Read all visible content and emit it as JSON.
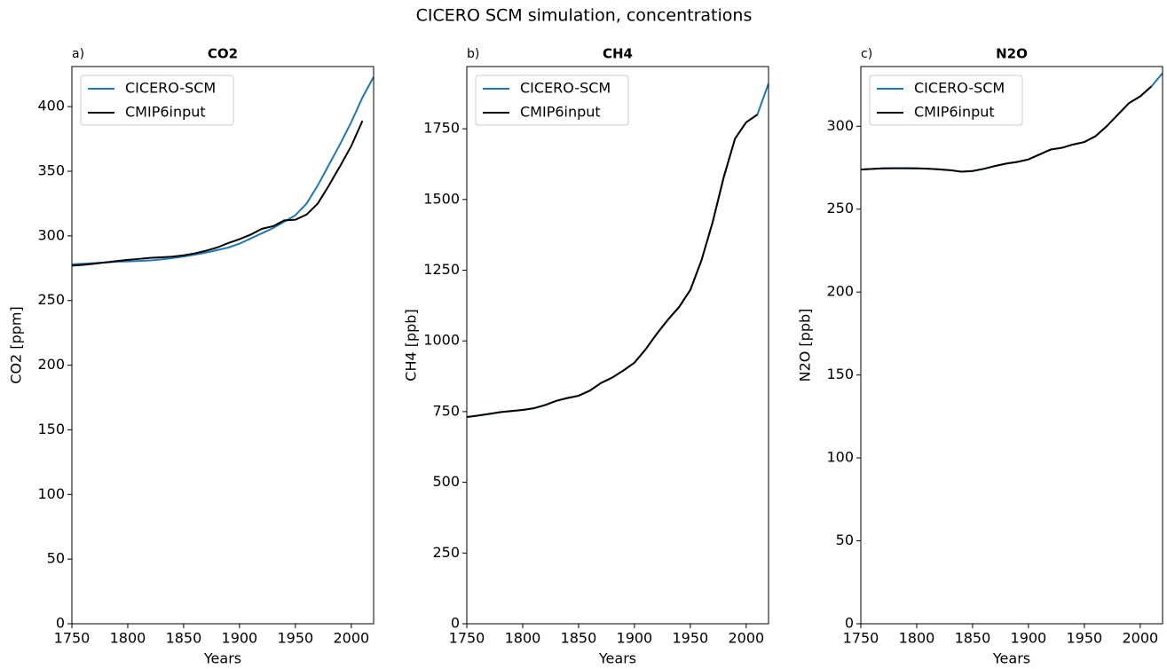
{
  "title": "CICERO SCM simulation, concentrations",
  "chart_data": [
    {
      "type": "line",
      "panel_label": "a)",
      "title": "CO2",
      "x_label": "Years",
      "y_label": "CO2 [ppm]",
      "x": [
        1750,
        1760,
        1770,
        1780,
        1790,
        1800,
        1810,
        1820,
        1830,
        1840,
        1850,
        1860,
        1870,
        1880,
        1890,
        1900,
        1910,
        1920,
        1930,
        1940,
        1950,
        1960,
        1970,
        1980,
        1990,
        2000,
        2010,
        2020
      ],
      "series": [
        {
          "name": "CICERO-SCM",
          "color": "#1f77b4",
          "values": [
            278,
            278.5,
            279,
            279.5,
            280,
            280.3,
            280.6,
            281,
            281.8,
            282.8,
            284,
            285.5,
            287,
            289,
            291,
            294,
            298,
            302,
            306,
            311,
            316,
            325,
            339,
            355,
            371,
            388,
            407,
            423
          ]
        },
        {
          "name": "CMIP6input",
          "color": "#000000",
          "values": [
            277,
            277.6,
            278.5,
            279.5,
            280.5,
            281.5,
            282.2,
            283,
            283.4,
            284,
            285,
            286.5,
            288.5,
            291,
            294.5,
            297.5,
            301,
            305.5,
            307.5,
            312,
            312.5,
            316.5,
            325,
            339,
            354,
            369.5,
            389,
            null
          ]
        }
      ],
      "xlim": [
        1750,
        2020
      ],
      "xticks": [
        1750,
        1800,
        1850,
        1900,
        1950,
        2000
      ],
      "ylim": [
        0,
        431
      ],
      "yticks": [
        0,
        50,
        100,
        150,
        200,
        250,
        300,
        350,
        400
      ],
      "legend": "upper left"
    },
    {
      "type": "line",
      "panel_label": "b)",
      "title": "CH4",
      "x_label": "Years",
      "y_label": "CH4 [ppb]",
      "x": [
        1750,
        1760,
        1770,
        1780,
        1790,
        1800,
        1810,
        1820,
        1830,
        1840,
        1850,
        1860,
        1870,
        1880,
        1890,
        1900,
        1910,
        1920,
        1930,
        1940,
        1950,
        1960,
        1970,
        1980,
        1990,
        2000,
        2010,
        2020
      ],
      "series": [
        {
          "name": "CICERO-SCM",
          "color": "#1f77b4",
          "values": [
            731,
            736,
            742,
            748,
            752,
            756,
            762,
            773,
            788,
            798,
            806,
            824,
            851,
            870,
            895,
            923,
            970,
            1025,
            1075,
            1120,
            1180,
            1285,
            1420,
            1580,
            1715,
            1773,
            1800,
            1910
          ]
        },
        {
          "name": "CMIP6input",
          "color": "#000000",
          "values": [
            731,
            736,
            742,
            748,
            752,
            756,
            762,
            773,
            788,
            798,
            806,
            824,
            851,
            870,
            895,
            923,
            970,
            1025,
            1075,
            1120,
            1180,
            1285,
            1420,
            1580,
            1715,
            1773,
            1800,
            null
          ]
        }
      ],
      "xlim": [
        1750,
        2020
      ],
      "xticks": [
        1750,
        1800,
        1850,
        1900,
        1950,
        2000
      ],
      "ylim": [
        0,
        1970
      ],
      "yticks": [
        0,
        250,
        500,
        750,
        1000,
        1250,
        1500,
        1750
      ],
      "legend": "upper left"
    },
    {
      "type": "line",
      "panel_label": "c)",
      "title": "N2O",
      "x_label": "Years",
      "y_label": "N2O [ppb]",
      "x": [
        1750,
        1760,
        1770,
        1780,
        1790,
        1800,
        1810,
        1820,
        1830,
        1840,
        1850,
        1860,
        1870,
        1880,
        1890,
        1900,
        1910,
        1920,
        1930,
        1940,
        1950,
        1960,
        1970,
        1980,
        1990,
        2000,
        2010,
        2020
      ],
      "series": [
        {
          "name": "CICERO-SCM",
          "color": "#1f77b4",
          "values": [
            273.9,
            274.3,
            274.6,
            274.7,
            274.7,
            274.6,
            274.4,
            274,
            273.5,
            272.6,
            273,
            274.3,
            276,
            277.5,
            278.5,
            280,
            283,
            286,
            287,
            289,
            290.5,
            294,
            300,
            307,
            314,
            318,
            324,
            332
          ]
        },
        {
          "name": "CMIP6input",
          "color": "#000000",
          "values": [
            273.9,
            274.3,
            274.6,
            274.7,
            274.7,
            274.6,
            274.4,
            274,
            273.5,
            272.6,
            273,
            274.3,
            276,
            277.5,
            278.5,
            280,
            283,
            286,
            287,
            289,
            290.5,
            294,
            300,
            307,
            314,
            318,
            324,
            null
          ]
        }
      ],
      "xlim": [
        1750,
        2020
      ],
      "xticks": [
        1750,
        1800,
        1850,
        1900,
        1950,
        2000
      ],
      "ylim": [
        0,
        336
      ],
      "yticks": [
        0,
        50,
        100,
        150,
        200,
        250,
        300
      ],
      "legend": "upper left"
    }
  ]
}
